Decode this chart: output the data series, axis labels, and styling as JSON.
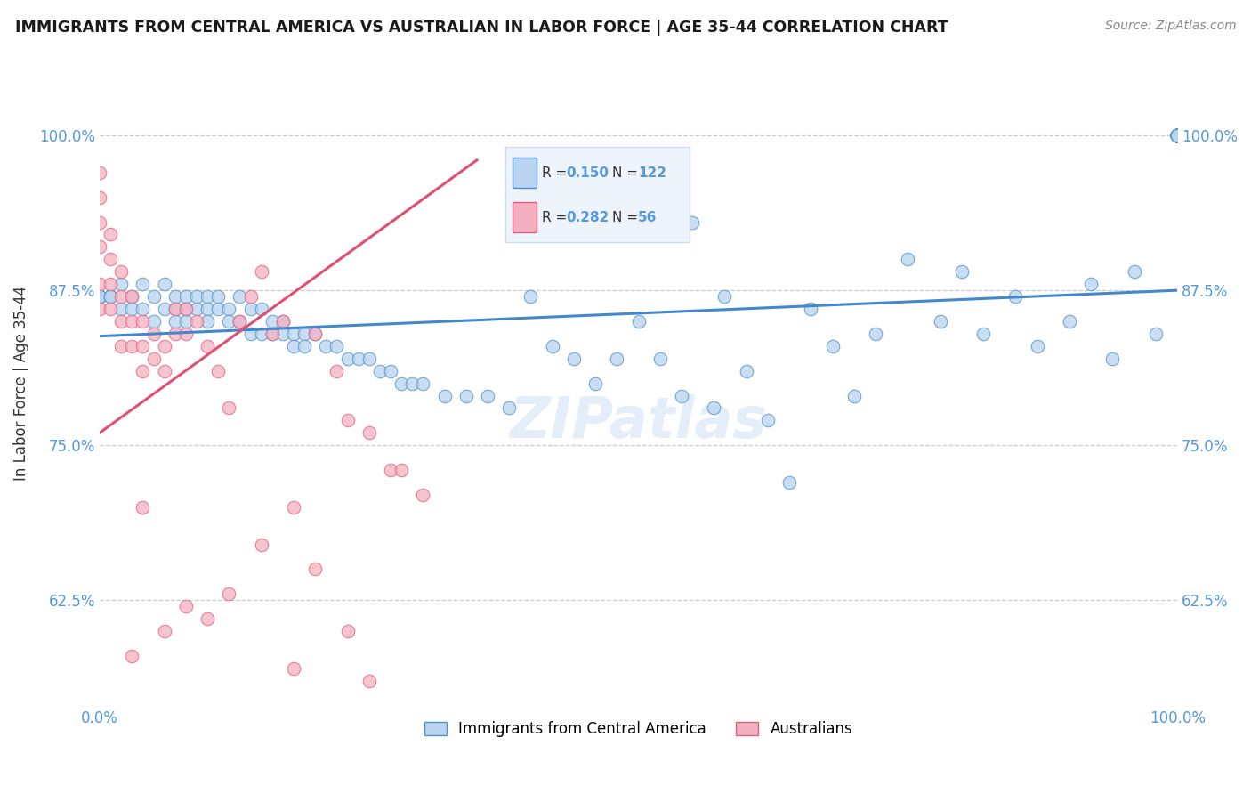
{
  "title": "IMMIGRANTS FROM CENTRAL AMERICA VS AUSTRALIAN IN LABOR FORCE | AGE 35-44 CORRELATION CHART",
  "source": "Source: ZipAtlas.com",
  "ylabel": "In Labor Force | Age 35-44",
  "xlim": [
    0.0,
    1.0
  ],
  "ylim": [
    0.54,
    1.06
  ],
  "ytick_vals": [
    0.625,
    0.75,
    0.875,
    1.0
  ],
  "ytick_labels": [
    "62.5%",
    "75.0%",
    "87.5%",
    "100.0%"
  ],
  "xtick_vals": [
    0.0,
    1.0
  ],
  "xtick_labels": [
    "0.0%",
    "100.0%"
  ],
  "r_blue": 0.15,
  "n_blue": 122,
  "r_pink": 0.282,
  "n_pink": 56,
  "blue_fill": "#b8d4f0",
  "blue_edge": "#5090c8",
  "pink_fill": "#f4b0c0",
  "pink_edge": "#e06080",
  "blue_line": "#4488cc",
  "pink_line": "#e05070",
  "background_color": "#ffffff",
  "grid_color": "#cccccc",
  "title_color": "#1a1a1a",
  "source_color": "#888888",
  "axis_label_color": "#333333",
  "tick_color": "#5599dd",
  "legend_bg": "#eef4fb",
  "legend_border": "#ccddee",
  "watermark_color": "#cce0f5",
  "blue_trend_x0": 0.0,
  "blue_trend_y0": 0.838,
  "blue_trend_x1": 1.0,
  "blue_trend_y1": 0.875,
  "pink_trend_x0": 0.0,
  "pink_trend_y0": 0.76,
  "pink_trend_x1": 0.35,
  "pink_trend_y1": 0.98,
  "blue_x": [
    0.0,
    0.0,
    0.0,
    0.01,
    0.01,
    0.02,
    0.02,
    0.03,
    0.03,
    0.04,
    0.04,
    0.05,
    0.05,
    0.06,
    0.06,
    0.07,
    0.07,
    0.07,
    0.08,
    0.08,
    0.08,
    0.09,
    0.09,
    0.1,
    0.1,
    0.1,
    0.11,
    0.11,
    0.12,
    0.12,
    0.13,
    0.13,
    0.14,
    0.14,
    0.15,
    0.15,
    0.16,
    0.16,
    0.17,
    0.17,
    0.18,
    0.18,
    0.19,
    0.19,
    0.2,
    0.21,
    0.22,
    0.23,
    0.24,
    0.25,
    0.26,
    0.27,
    0.28,
    0.29,
    0.3,
    0.32,
    0.34,
    0.36,
    0.38,
    0.4,
    0.42,
    0.44,
    0.46,
    0.48,
    0.5,
    0.52,
    0.54,
    0.55,
    0.57,
    0.58,
    0.6,
    0.62,
    0.64,
    0.66,
    0.68,
    0.7,
    0.72,
    0.75,
    0.78,
    0.8,
    0.82,
    0.85,
    0.87,
    0.9,
    0.92,
    0.94,
    0.96,
    0.98,
    1.0,
    1.0,
    1.0,
    1.0,
    1.0,
    1.0,
    1.0,
    1.0,
    1.0,
    1.0,
    1.0,
    1.0,
    1.0,
    1.0,
    1.0,
    1.0,
    1.0,
    1.0,
    1.0,
    1.0,
    1.0,
    1.0,
    1.0,
    1.0,
    1.0,
    1.0,
    1.0,
    1.0,
    1.0,
    1.0,
    1.0,
    1.0,
    1.0,
    1.0
  ],
  "blue_y": [
    0.87,
    0.87,
    0.87,
    0.87,
    0.87,
    0.88,
    0.86,
    0.87,
    0.86,
    0.88,
    0.86,
    0.87,
    0.85,
    0.88,
    0.86,
    0.87,
    0.86,
    0.85,
    0.87,
    0.86,
    0.85,
    0.87,
    0.86,
    0.87,
    0.86,
    0.85,
    0.87,
    0.86,
    0.86,
    0.85,
    0.87,
    0.85,
    0.86,
    0.84,
    0.86,
    0.84,
    0.85,
    0.84,
    0.85,
    0.84,
    0.84,
    0.83,
    0.84,
    0.83,
    0.84,
    0.83,
    0.83,
    0.82,
    0.82,
    0.82,
    0.81,
    0.81,
    0.8,
    0.8,
    0.8,
    0.79,
    0.79,
    0.79,
    0.78,
    0.87,
    0.83,
    0.82,
    0.8,
    0.82,
    0.85,
    0.82,
    0.79,
    0.93,
    0.78,
    0.87,
    0.81,
    0.77,
    0.72,
    0.86,
    0.83,
    0.79,
    0.84,
    0.9,
    0.85,
    0.89,
    0.84,
    0.87,
    0.83,
    0.85,
    0.88,
    0.82,
    0.89,
    0.84,
    1.0,
    1.0,
    1.0,
    1.0,
    1.0,
    1.0,
    1.0,
    1.0,
    1.0,
    1.0,
    1.0,
    1.0,
    1.0,
    1.0,
    1.0,
    1.0,
    1.0,
    1.0,
    1.0,
    1.0,
    1.0,
    1.0,
    1.0,
    1.0,
    1.0,
    1.0,
    1.0,
    1.0,
    1.0,
    1.0,
    1.0,
    1.0,
    1.0,
    1.0
  ],
  "pink_x": [
    0.0,
    0.0,
    0.0,
    0.0,
    0.0,
    0.0,
    0.01,
    0.01,
    0.01,
    0.01,
    0.02,
    0.02,
    0.02,
    0.02,
    0.03,
    0.03,
    0.03,
    0.04,
    0.04,
    0.04,
    0.05,
    0.05,
    0.06,
    0.06,
    0.07,
    0.07,
    0.08,
    0.08,
    0.09,
    0.1,
    0.11,
    0.12,
    0.13,
    0.14,
    0.15,
    0.16,
    0.17,
    0.18,
    0.2,
    0.22,
    0.23,
    0.25,
    0.27,
    0.28,
    0.3,
    0.06,
    0.08,
    0.1,
    0.12,
    0.15,
    0.18,
    0.2,
    0.23,
    0.25,
    0.04,
    0.03
  ],
  "pink_y": [
    0.97,
    0.95,
    0.93,
    0.91,
    0.88,
    0.86,
    0.92,
    0.9,
    0.88,
    0.86,
    0.89,
    0.87,
    0.85,
    0.83,
    0.87,
    0.85,
    0.83,
    0.85,
    0.83,
    0.81,
    0.84,
    0.82,
    0.83,
    0.81,
    0.86,
    0.84,
    0.86,
    0.84,
    0.85,
    0.83,
    0.81,
    0.78,
    0.85,
    0.87,
    0.89,
    0.84,
    0.85,
    0.7,
    0.84,
    0.81,
    0.77,
    0.76,
    0.73,
    0.73,
    0.71,
    0.6,
    0.62,
    0.61,
    0.63,
    0.67,
    0.57,
    0.65,
    0.6,
    0.56,
    0.7,
    0.58
  ]
}
